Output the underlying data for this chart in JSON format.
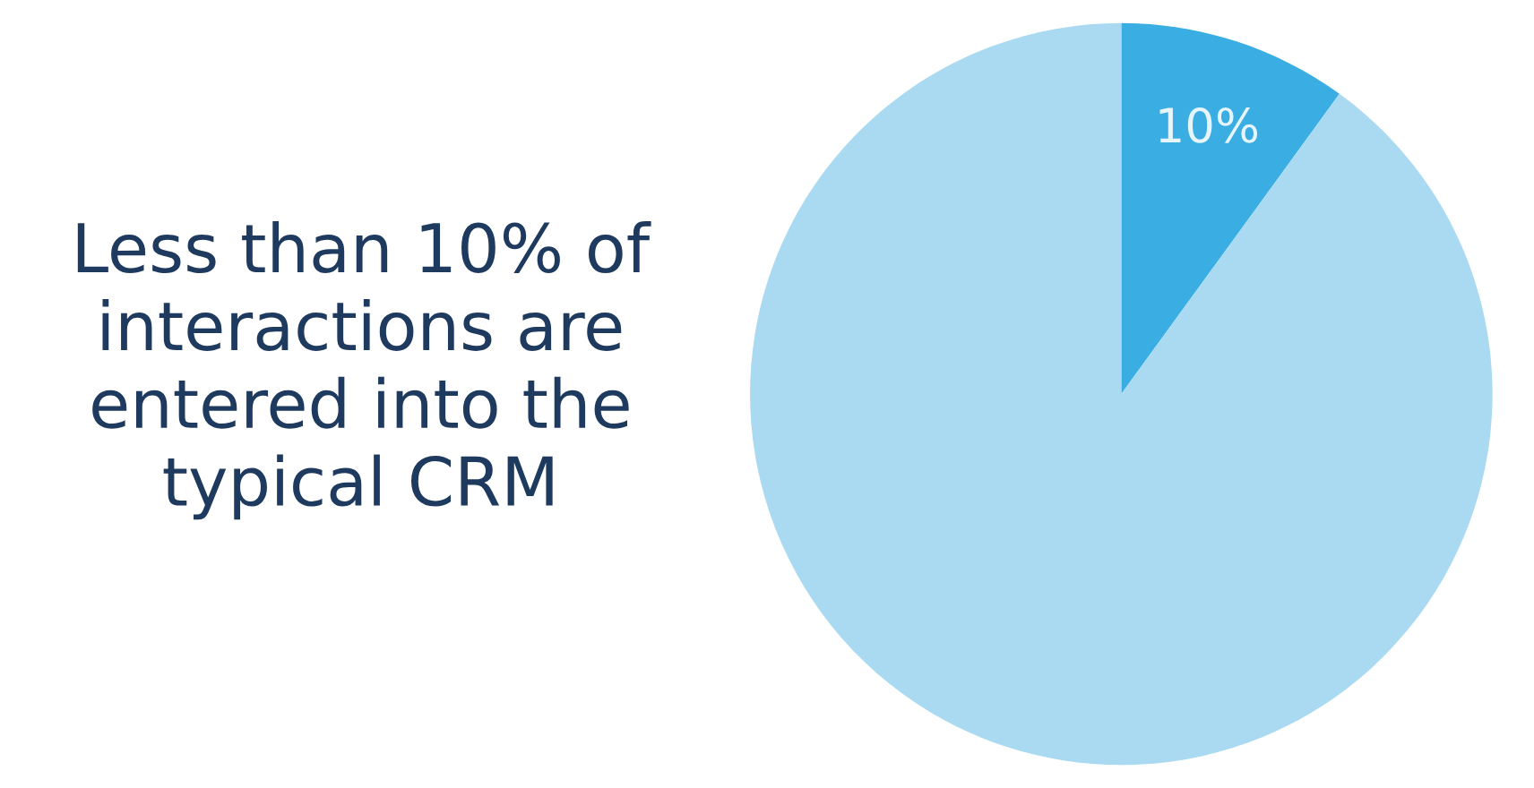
{
  "chart_data": {
    "type": "pie",
    "title": "Less than 10% of\ninteractions are\nentered into the\ntypical CRM",
    "categories": [
      null,
      null
    ],
    "values": [
      10,
      90
    ],
    "colors": [
      "#3aaee2",
      "#a9daf1"
    ],
    "value_labels": [
      "10%",
      null
    ]
  }
}
